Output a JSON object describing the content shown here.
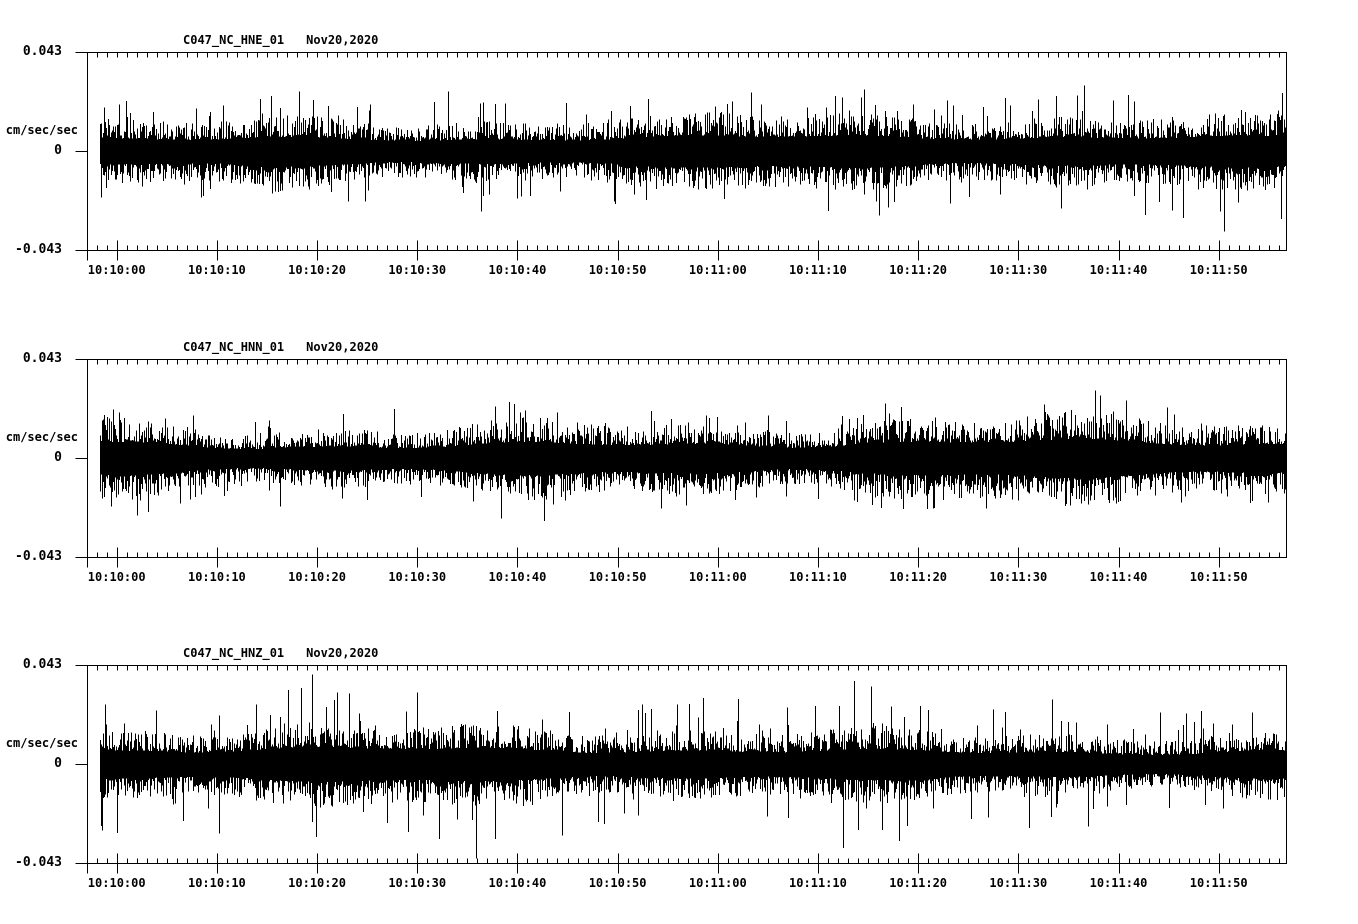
{
  "figure": {
    "background": "#ffffff",
    "ink": "#000000"
  },
  "chart_data": [
    {
      "type": "line",
      "chart_kind": "seismogram",
      "title": "C047_NC_HNE_01",
      "date_label": "Nov20,2020",
      "station": "C047",
      "network": "NC",
      "channel": "HNE",
      "location": "01",
      "ylabel": "cm/sec/sec",
      "y_tick_labels": [
        "0.043",
        "0",
        "-0.043"
      ],
      "ylim": [
        -0.043,
        0.043
      ],
      "x_start": "10:09:57",
      "x_end": "10:11:57",
      "x_major_tick_interval_sec": 10,
      "x_minor_tick_interval_sec": 1,
      "x_major_tick_labels": [
        "10:10:00",
        "10:10:10",
        "10:10:20",
        "10:10:30",
        "10:10:40",
        "10:10:50",
        "10:11:00",
        "10:11:10",
        "10:11:20",
        "10:11:30",
        "10:11:40",
        "10:11:50"
      ],
      "signal_envelope": {
        "mean": 0,
        "dense_band_amp": 0.0113,
        "max_peak_amp": 0.028
      }
    },
    {
      "type": "line",
      "chart_kind": "seismogram",
      "title": "C047_NC_HNN_01",
      "date_label": "Nov20,2020",
      "station": "C047",
      "network": "NC",
      "channel": "HNN",
      "location": "01",
      "ylabel": "cm/sec/sec",
      "y_tick_labels": [
        "0.043",
        "0",
        "-0.043"
      ],
      "ylim": [
        -0.043,
        0.043
      ],
      "x_start": "10:09:57",
      "x_end": "10:11:57",
      "x_major_tick_interval_sec": 10,
      "x_minor_tick_interval_sec": 1,
      "x_major_tick_labels": [
        "10:10:00",
        "10:10:10",
        "10:10:20",
        "10:10:30",
        "10:10:40",
        "10:10:50",
        "10:11:00",
        "10:11:10",
        "10:11:20",
        "10:11:30",
        "10:11:40",
        "10:11:50"
      ],
      "signal_envelope": {
        "mean": 0,
        "dense_band_amp": 0.0122,
        "max_peak_amp": 0.026
      }
    },
    {
      "type": "line",
      "chart_kind": "seismogram",
      "title": "C047_NC_HNZ_01",
      "date_label": "Nov20,2020",
      "station": "C047",
      "network": "NC",
      "channel": "HNZ",
      "location": "01",
      "ylabel": "cm/sec/sec",
      "y_tick_labels": [
        "0.043",
        "0",
        "-0.043"
      ],
      "ylim": [
        -0.043,
        0.043
      ],
      "x_start": "10:09:57",
      "x_end": "10:11:57",
      "x_major_tick_interval_sec": 10,
      "x_minor_tick_interval_sec": 1,
      "x_major_tick_labels": [
        "10:10:00",
        "10:10:10",
        "10:10:20",
        "10:10:30",
        "10:10:40",
        "10:10:50",
        "10:11:00",
        "10:11:10",
        "10:11:20",
        "10:11:30",
        "10:11:40",
        "10:11:50"
      ],
      "signal_envelope": {
        "mean": 0,
        "dense_band_amp": 0.0117,
        "max_peak_amp": 0.032
      }
    }
  ]
}
